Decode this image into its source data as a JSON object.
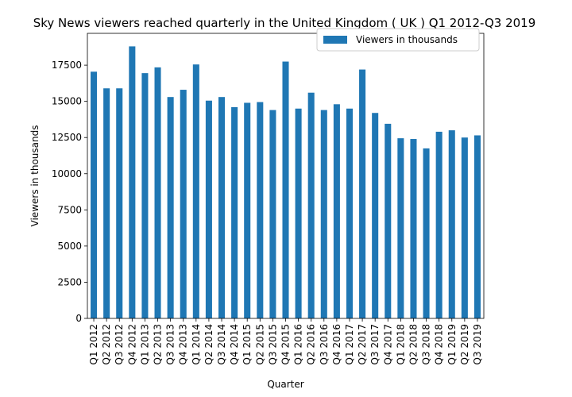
{
  "chart_data": {
    "type": "bar",
    "title": "Sky News viewers reached quarterly in the United Kingdom ( UK ) Q1 2012-Q3 2019",
    "xlabel": "Quarter",
    "ylabel": "Viewers in thousands",
    "ylim": [
      0,
      19700
    ],
    "yticks": [
      0,
      2500,
      5000,
      7500,
      10000,
      12500,
      15000,
      17500
    ],
    "grid": false,
    "legend_position": "top-right",
    "bar_color": "#1f77b4",
    "categories": [
      "Q1 2012",
      "Q2 2012",
      "Q3 2012",
      "Q4 2012",
      "Q1 2013",
      "Q2 2013",
      "Q3 2013",
      "Q4 2013",
      "Q1 2014",
      "Q2 2014",
      "Q3 2014",
      "Q4 2014",
      "Q1 2015",
      "Q2 2015",
      "Q3 2015",
      "Q4 2015",
      "Q1 2016",
      "Q2 2016",
      "Q3 2016",
      "Q4 2016",
      "Q1 2017",
      "Q2 2017",
      "Q3 2017",
      "Q4 2017",
      "Q1 2018",
      "Q2 2018",
      "Q3 2018",
      "Q4 2018",
      "Q1 2019",
      "Q2 2019",
      "Q3 2019"
    ],
    "series": [
      {
        "name": "Viewers in thousands",
        "values": [
          17050,
          15900,
          15900,
          18800,
          16950,
          17350,
          15300,
          15800,
          17550,
          15050,
          15300,
          14600,
          14900,
          14950,
          14400,
          17750,
          14500,
          15600,
          14400,
          14800,
          14500,
          17200,
          14200,
          13450,
          12450,
          12400,
          11750,
          12900,
          13000,
          12500,
          12650
        ]
      }
    ]
  }
}
